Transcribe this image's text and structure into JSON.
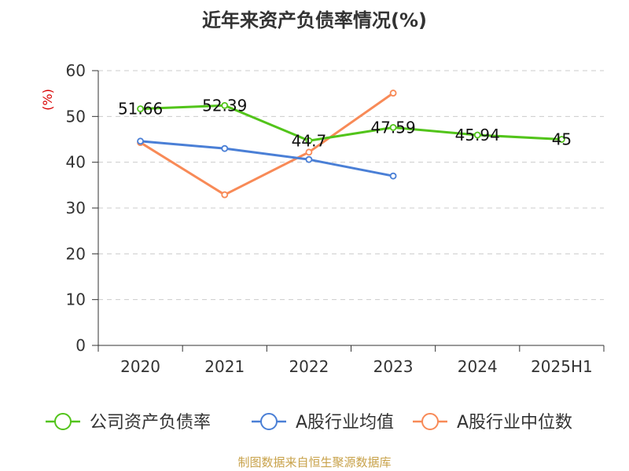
{
  "title": "近年来资产负债率情况(%)",
  "source": "制图数据来自恒生聚源数据库",
  "colors": {
    "company": "#52c41a",
    "industry_avg": "#4a7fd6",
    "industry_median": "#f88a57",
    "unit": "#d90000",
    "axis": "#333333",
    "grid": "#cccccc",
    "source": "#c8a24a"
  },
  "chart_data": {
    "type": "line",
    "title": "近年来资产负债率情况(%)",
    "ylabel": "(%)",
    "xlabel": "",
    "ylim": [
      0,
      60
    ],
    "yticks": [
      0,
      10,
      20,
      30,
      40,
      50,
      60
    ],
    "grid": true,
    "legend_position": "bottom",
    "categories": [
      "2020",
      "2021",
      "2022",
      "2023",
      "2024",
      "2025H1"
    ],
    "series": [
      {
        "name": "公司资产负债率",
        "values": [
          51.66,
          52.39,
          44.7,
          47.59,
          45.94,
          45
        ],
        "labels": [
          "51.66",
          "52.39",
          "44.7",
          "47.59",
          "45.94",
          "45"
        ]
      },
      {
        "name": "A股行业均值",
        "values": [
          44.6,
          43,
          40.6,
          37,
          null,
          null
        ]
      },
      {
        "name": "A股行业中位数",
        "values": [
          44.3,
          32.9,
          42.2,
          55.1,
          null,
          null
        ]
      }
    ]
  }
}
